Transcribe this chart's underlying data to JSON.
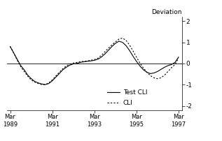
{
  "ylabel": "Deviation",
  "ylim": [
    -2.2,
    2.2
  ],
  "yticks": [
    -2,
    -1,
    0,
    1,
    2
  ],
  "xtick_labels": [
    "Mar\n1989",
    "Mar\n1991",
    "Mar\n1993",
    "Mar\n1995",
    "Mar\n1997"
  ],
  "xtick_positions": [
    0,
    24,
    48,
    72,
    96
  ],
  "background_color": "#ffffff",
  "test_cli_months": [
    0,
    2,
    4,
    6,
    8,
    10,
    12,
    14,
    16,
    18,
    20,
    22,
    24,
    26,
    28,
    30,
    32,
    34,
    36,
    38,
    40,
    42,
    44,
    46,
    48,
    50,
    52,
    54,
    56,
    58,
    60,
    62,
    64,
    66,
    68,
    70,
    72,
    74,
    76,
    78,
    80,
    82,
    84,
    86,
    88,
    90,
    92,
    94,
    96
  ],
  "test_cli_values": [
    0.8,
    0.5,
    0.2,
    -0.1,
    -0.3,
    -0.55,
    -0.72,
    -0.85,
    -0.92,
    -0.97,
    -1.0,
    -0.95,
    -0.82,
    -0.65,
    -0.48,
    -0.3,
    -0.18,
    -0.08,
    -0.02,
    0.0,
    0.05,
    0.08,
    0.1,
    0.12,
    0.15,
    0.2,
    0.3,
    0.45,
    0.62,
    0.8,
    0.95,
    1.05,
    1.0,
    0.85,
    0.62,
    0.35,
    0.1,
    -0.12,
    -0.3,
    -0.42,
    -0.48,
    -0.45,
    -0.38,
    -0.28,
    -0.18,
    -0.1,
    -0.05,
    0.05,
    0.3
  ],
  "cli_months": [
    0,
    2,
    4,
    6,
    8,
    10,
    12,
    14,
    16,
    18,
    20,
    22,
    24,
    26,
    28,
    30,
    32,
    34,
    36,
    38,
    40,
    42,
    44,
    46,
    48,
    50,
    52,
    54,
    56,
    58,
    60,
    62,
    64,
    66,
    68,
    70,
    72,
    74,
    76,
    78,
    80,
    82,
    84,
    86,
    88,
    90,
    92,
    94,
    96
  ],
  "cli_values": [
    0.8,
    0.5,
    0.15,
    -0.15,
    -0.38,
    -0.6,
    -0.78,
    -0.88,
    -0.95,
    -1.0,
    -1.0,
    -0.92,
    -0.78,
    -0.6,
    -0.42,
    -0.25,
    -0.12,
    -0.03,
    0.02,
    0.05,
    0.08,
    0.1,
    0.12,
    0.15,
    0.18,
    0.25,
    0.38,
    0.55,
    0.72,
    0.88,
    1.02,
    1.15,
    1.2,
    1.1,
    0.88,
    0.6,
    0.3,
    0.02,
    -0.22,
    -0.42,
    -0.58,
    -0.68,
    -0.72,
    -0.68,
    -0.55,
    -0.38,
    -0.2,
    -0.05,
    0.25
  ]
}
